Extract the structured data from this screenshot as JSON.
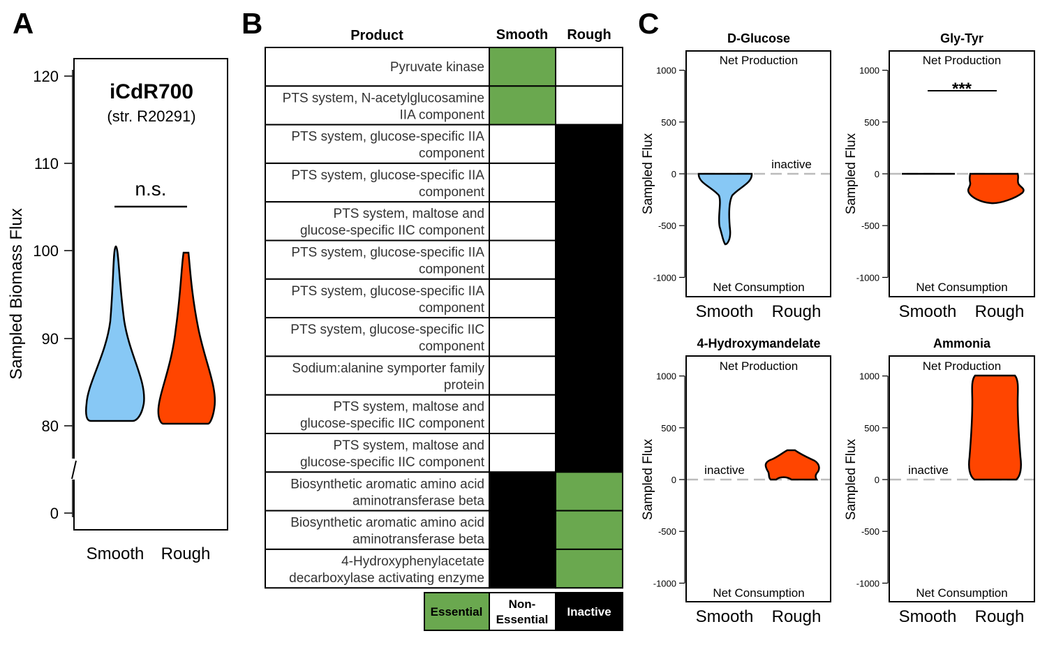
{
  "panels": {
    "a": "A",
    "b": "B",
    "c": "C"
  },
  "colors": {
    "smooth": "#87c8f5",
    "rough": "#ff4500",
    "essential": "#6aa84f",
    "inactive": "#000000",
    "zero_line": "#bbbbbb"
  },
  "panel_a": {
    "title": "iCdR700",
    "subtitle": "(str. R20291)",
    "significance": "n.s.",
    "ylabel": "Sampled Biomass Flux",
    "yticks": [
      "120",
      "110",
      "100",
      "90",
      "80",
      "0"
    ],
    "categories": [
      "Smooth",
      "Rough"
    ]
  },
  "panel_b": {
    "headers": {
      "product": "Product",
      "smooth": "Smooth",
      "rough": "Rough"
    },
    "rows": [
      {
        "line1": "Pyruvate kinase",
        "line2": "",
        "smooth": "Essential",
        "rough": "Non-Essential"
      },
      {
        "line1": "PTS system, N-acetylglucosamine",
        "line2": "IIA component",
        "smooth": "Essential",
        "rough": "Non-Essential"
      },
      {
        "line1": "PTS system, glucose-specific IIA",
        "line2": "component",
        "smooth": "Non-Essential",
        "rough": "Inactive"
      },
      {
        "line1": "PTS system, glucose-specific IIA",
        "line2": "component",
        "smooth": "Non-Essential",
        "rough": "Inactive"
      },
      {
        "line1": "PTS system, maltose and",
        "line2": "glucose-specific IIC component",
        "smooth": "Non-Essential",
        "rough": "Inactive"
      },
      {
        "line1": "PTS system, glucose-specific IIA",
        "line2": "component",
        "smooth": "Non-Essential",
        "rough": "Inactive"
      },
      {
        "line1": "PTS system, glucose-specific IIA",
        "line2": "component",
        "smooth": "Non-Essential",
        "rough": "Inactive"
      },
      {
        "line1": "PTS system, glucose-specific IIC",
        "line2": "component",
        "smooth": "Non-Essential",
        "rough": "Inactive"
      },
      {
        "line1": "Sodium:alanine symporter family",
        "line2": "protein",
        "smooth": "Non-Essential",
        "rough": "Inactive"
      },
      {
        "line1": "PTS system, maltose and",
        "line2": "glucose-specific IIC component",
        "smooth": "Non-Essential",
        "rough": "Inactive"
      },
      {
        "line1": "PTS system, maltose and",
        "line2": "glucose-specific IIC component",
        "smooth": "Non-Essential",
        "rough": "Inactive"
      },
      {
        "line1": "Biosynthetic aromatic amino acid",
        "line2": "aminotransferase beta",
        "smooth": "Inactive",
        "rough": "Essential"
      },
      {
        "line1": "Biosynthetic aromatic amino acid",
        "line2": "aminotransferase beta",
        "smooth": "Inactive",
        "rough": "Essential"
      },
      {
        "line1": "4-Hydroxyphenylacetate",
        "line2": "decarboxylase activating enzyme",
        "smooth": "Inactive",
        "rough": "Essential"
      }
    ],
    "legend": {
      "essential": "Essential",
      "nonessential_line1": "Non-",
      "nonessential_line2": "Essential",
      "inactive": "Inactive"
    }
  },
  "panel_c": {
    "ylabel": "Sampled Flux",
    "yticks": [
      "1000",
      "500",
      "0",
      "-500",
      "-1000"
    ],
    "net_production": "Net Production",
    "net_consumption": "Net Consumption",
    "inactive_label": "inactive",
    "categories": [
      "Smooth",
      "Rough"
    ],
    "plots": [
      {
        "title": "D-Glucose",
        "significance": ""
      },
      {
        "title": "Gly-Tyr",
        "significance": "***"
      },
      {
        "title": "4-Hydroxymandelate",
        "significance": ""
      },
      {
        "title": "Ammonia",
        "significance": ""
      }
    ]
  },
  "chart_data": [
    {
      "type": "violin",
      "title": "iCdR700",
      "subtitle": "(str. R20291)",
      "ylabel": "Sampled Biomass Flux",
      "ylim": [
        0,
        120
      ],
      "axis_break": [
        0,
        80
      ],
      "categories": [
        "Smooth",
        "Rough"
      ],
      "series": [
        {
          "name": "Smooth",
          "min": 80.8,
          "max": 100.5,
          "mode": 84
        },
        {
          "name": "Rough",
          "min": 80.1,
          "max": 99.9,
          "mode": 84
        }
      ],
      "annotation": "n.s."
    },
    {
      "type": "violin",
      "title": "D-Glucose",
      "ylabel": "Sampled Flux",
      "ylim": [
        -1000,
        1000
      ],
      "categories": [
        "Smooth",
        "Rough"
      ],
      "series": [
        {
          "name": "Smooth",
          "min": -680,
          "max": 0,
          "mode": -60
        },
        {
          "name": "Rough",
          "state": "inactive"
        }
      ]
    },
    {
      "type": "violin",
      "title": "Gly-Tyr",
      "ylabel": "Sampled Flux",
      "ylim": [
        -1000,
        1000
      ],
      "categories": [
        "Smooth",
        "Rough"
      ],
      "series": [
        {
          "name": "Smooth",
          "min": -5,
          "max": 0,
          "mode": 0
        },
        {
          "name": "Rough",
          "min": -285,
          "max": 0,
          "mode": -130
        }
      ],
      "annotation": "***"
    },
    {
      "type": "violin",
      "title": "4-Hydroxymandelate",
      "ylabel": "Sampled Flux",
      "ylim": [
        -1000,
        1000
      ],
      "categories": [
        "Smooth",
        "Rough"
      ],
      "series": [
        {
          "name": "Smooth",
          "state": "inactive"
        },
        {
          "name": "Rough",
          "min": 0,
          "max": 280,
          "mode": 140
        }
      ]
    },
    {
      "type": "violin",
      "title": "Ammonia",
      "ylabel": "Sampled Flux",
      "ylim": [
        -1000,
        1000
      ],
      "categories": [
        "Smooth",
        "Rough"
      ],
      "series": [
        {
          "name": "Smooth",
          "state": "inactive"
        },
        {
          "name": "Rough",
          "min": 0,
          "max": 1000,
          "mode": 700
        }
      ]
    }
  ]
}
